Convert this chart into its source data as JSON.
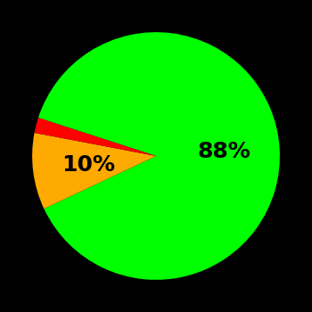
{
  "slices": [
    88,
    10,
    2
  ],
  "colors": [
    "#00ff00",
    "#ffaa00",
    "#ff0000"
  ],
  "labels": [
    "88%",
    "10%",
    ""
  ],
  "background_color": "#000000",
  "startangle": 162,
  "label_fontsize": 18,
  "label_fontweight": "bold",
  "figsize": [
    3.5,
    3.5
  ],
  "dpi": 100
}
